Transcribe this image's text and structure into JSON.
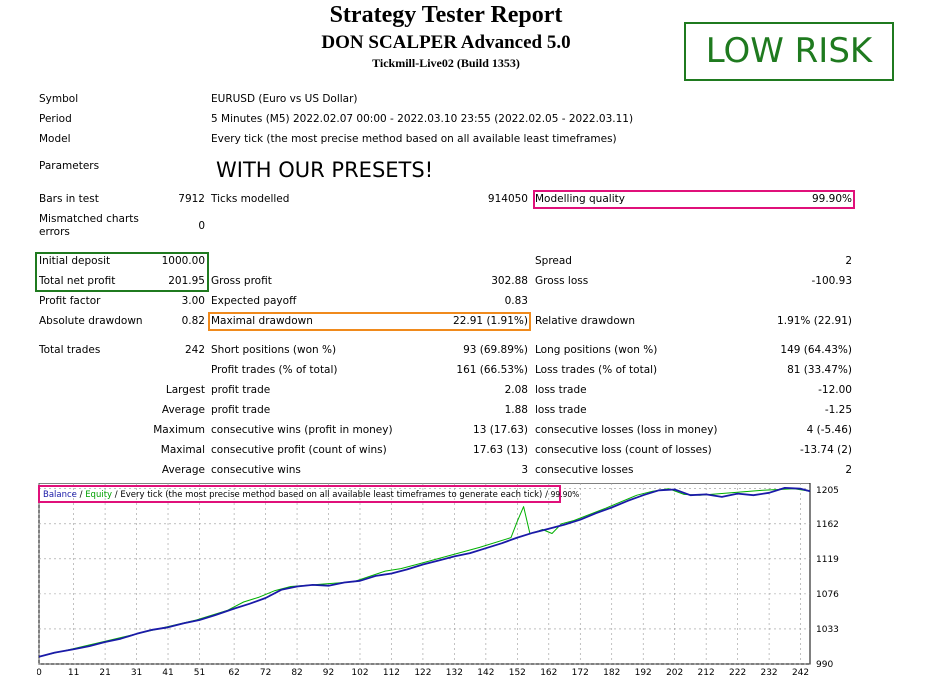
{
  "header": {
    "title": "Strategy Tester Report",
    "subtitle": "DON SCALPER Advanced 5.0",
    "server": "Tickmill-Live02 (Build 1353)"
  },
  "badge": {
    "text": "LOW RISK",
    "color": "#1f7a1f"
  },
  "presets_note": "WITH OUR PRESETS!",
  "info": {
    "symbol_label": "Symbol",
    "symbol_value": "EURUSD (Euro vs US Dollar)",
    "period_label": "Period",
    "period_value": "5 Minutes (M5) 2022.02.07 00:00 - 2022.03.10 23:55 (2022.02.05 - 2022.03.11)",
    "model_label": "Model",
    "model_value": "Every tick (the most precise method based on all available least timeframes)",
    "parameters_label": "Parameters"
  },
  "stats": {
    "bars_label": "Bars in test",
    "bars_value": "7912",
    "ticks_label": "Ticks modelled",
    "ticks_value": "914050",
    "quality_label": "Modelling quality",
    "quality_value": "99.90%",
    "mismatch_label_1": "Mismatched charts",
    "mismatch_label_2": "errors",
    "mismatch_value": "0",
    "deposit_label": "Initial deposit",
    "deposit_value": "1000.00",
    "spread_label": "Spread",
    "spread_value": "2",
    "netprofit_label": "Total net profit",
    "netprofit_value": "201.95",
    "grossprofit_label": "Gross profit",
    "grossprofit_value": "302.88",
    "grossloss_label": "Gross loss",
    "grossloss_value": "-100.93",
    "pf_label": "Profit factor",
    "pf_value": "3.00",
    "payoff_label": "Expected payoff",
    "payoff_value": "0.83",
    "absdd_label": "Absolute drawdown",
    "absdd_value": "0.82",
    "maxdd_label": "Maximal drawdown",
    "maxdd_value": "22.91 (1.91%)",
    "reldd_label": "Relative drawdown",
    "reldd_value": "1.91% (22.91)",
    "trades_label": "Total trades",
    "trades_value": "242",
    "short_label": "Short positions (won %)",
    "short_value": "93 (69.89%)",
    "long_label": "Long positions (won %)",
    "long_value": "149 (64.43%)",
    "ptrades_label": "Profit trades (% of total)",
    "ptrades_value": "161 (66.53%)",
    "ltrades_label": "Loss trades (% of total)",
    "ltrades_value": "81 (33.47%)",
    "largest_label": "Largest",
    "largest_profit_label": "profit trade",
    "largest_profit_value": "2.08",
    "largest_loss_label": "loss trade",
    "largest_loss_value": "-12.00",
    "average_label": "Average",
    "average_profit_label": "profit trade",
    "average_profit_value": "1.88",
    "average_loss_label": "loss trade",
    "average_loss_value": "-1.25",
    "maximum_label": "Maximum",
    "max_cw_label": "consecutive wins (profit in money)",
    "max_cw_value": "13 (17.63)",
    "max_cl_label": "consecutive losses (loss in money)",
    "max_cl_value": "4 (-5.46)",
    "maximal_label": "Maximal",
    "maxl_cp_label": "consecutive profit (count of wins)",
    "maxl_cp_value": "17.63 (13)",
    "maxl_cl_label": "consecutive loss (count of losses)",
    "maxl_cl_value": "-13.74 (2)",
    "avg2_label": "Average",
    "avg_cw_label": "consecutive wins",
    "avg_cw_value": "3",
    "avg_cl_label": "consecutive losses",
    "avg_cl_value": "2"
  },
  "chart_header": {
    "balance": "Balance",
    "sep1": " / ",
    "equity": "Equity",
    "rest": " / Every tick (the most precise method based on all available least timeframes to generate each tick) / ",
    "quality": "99.90%"
  },
  "chart_data": {
    "type": "line",
    "x_ticks": [
      "0",
      "11",
      "21",
      "31",
      "41",
      "51",
      "62",
      "72",
      "82",
      "92",
      "102",
      "112",
      "122",
      "132",
      "142",
      "152",
      "162",
      "172",
      "182",
      "192",
      "202",
      "212",
      "222",
      "232",
      "242"
    ],
    "y_ticks": [
      "1205",
      "1162",
      "1119",
      "1076",
      "1033",
      "990"
    ],
    "xlim": [
      0,
      245
    ],
    "ylim": [
      990,
      1212
    ],
    "series": [
      {
        "name": "Balance",
        "color": "#1a1aa8",
        "x": [
          0,
          5,
          11,
          16,
          21,
          26,
          31,
          36,
          41,
          46,
          51,
          56,
          62,
          67,
          72,
          77,
          82,
          87,
          92,
          97,
          102,
          107,
          112,
          117,
          122,
          127,
          132,
          137,
          142,
          147,
          152,
          157,
          162,
          167,
          172,
          177,
          182,
          187,
          192,
          197,
          202,
          207,
          212,
          217,
          222,
          227,
          232,
          237,
          242,
          245
        ],
        "y": [
          999,
          1004,
          1008,
          1012,
          1017,
          1021,
          1027,
          1032,
          1035,
          1040,
          1044,
          1050,
          1058,
          1064,
          1071,
          1081,
          1085,
          1087,
          1086,
          1090,
          1092,
          1098,
          1101,
          1106,
          1112,
          1117,
          1122,
          1126,
          1132,
          1138,
          1145,
          1151,
          1156,
          1161,
          1167,
          1175,
          1182,
          1190,
          1197,
          1203,
          1204,
          1197,
          1198,
          1195,
          1199,
          1197,
          1200,
          1206,
          1205,
          1202
        ]
      },
      {
        "name": "Equity",
        "color": "#00b000",
        "x": [
          0,
          30,
          50,
          60,
          65,
          70,
          75,
          80,
          100,
          110,
          115,
          120,
          140,
          150,
          152,
          154,
          156,
          158,
          160,
          163,
          166,
          170,
          180,
          190,
          195,
          200,
          205,
          210,
          220,
          230,
          240,
          245
        ],
        "y": [
          999,
          1026,
          1044,
          1056,
          1066,
          1072,
          1080,
          1085,
          1091,
          1104,
          1107,
          1112,
          1133,
          1145,
          1165,
          1183,
          1150,
          1152,
          1155,
          1150,
          1162,
          1166,
          1181,
          1197,
          1202,
          1205,
          1198,
          1197,
          1200,
          1203,
          1205,
          1202
        ]
      }
    ]
  }
}
